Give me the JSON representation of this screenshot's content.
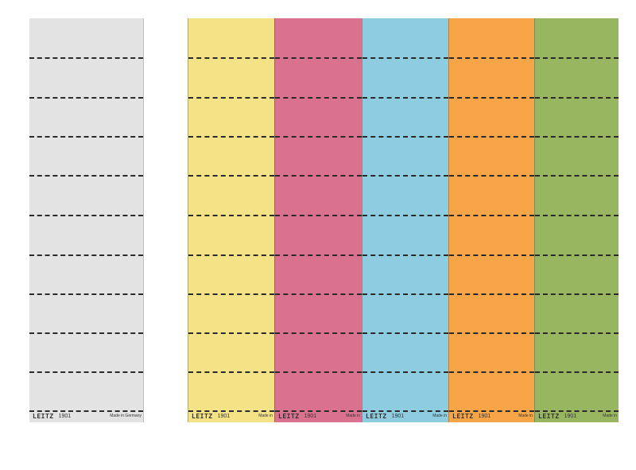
{
  "colors": {
    "white_sheet": "#e3e3e3",
    "yellow": "#f4e286",
    "pink": "#d9718f",
    "blue": "#8ecde0",
    "orange": "#f7a546",
    "green": "#98b660",
    "perforation": "#2a2a2a"
  },
  "white_sheet": {
    "brand": "LEITZ",
    "model": "1901",
    "made_in": "Made in Germany"
  },
  "strips": [
    {
      "color": "yellow",
      "brand": "LEITZ",
      "model": "1901",
      "made_in": "Made in"
    },
    {
      "color": "pink",
      "brand": "LEITZ",
      "model": "1901",
      "made_in": "Made in"
    },
    {
      "color": "blue",
      "brand": "LEITZ",
      "model": "1901",
      "made_in": "Made in"
    },
    {
      "color": "orange",
      "brand": "LEITZ",
      "model": "1901",
      "made_in": "Made in"
    },
    {
      "color": "green",
      "brand": "LEITZ",
      "model": "1901",
      "made_in": "Made in"
    }
  ],
  "labels_per_strip": 10
}
